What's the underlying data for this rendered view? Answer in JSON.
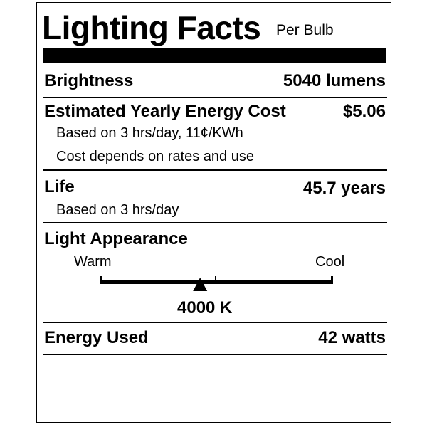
{
  "header": {
    "title": "Lighting Facts",
    "subtitle": "Per Bulb"
  },
  "brightness": {
    "label": "Brightness",
    "value": "5040 lumens"
  },
  "energy_cost": {
    "label": "Estimated Yearly Energy Cost",
    "value": "$5.06",
    "notes": [
      "Based on 3 hrs/day, 11¢/KWh",
      "Cost depends on rates and use"
    ]
  },
  "life": {
    "label": "Life",
    "value": "45.7 years",
    "note": "Based on 3 hrs/day"
  },
  "light_appearance": {
    "label": "Light Appearance",
    "warm_label": "Warm",
    "cool_label": "Cool",
    "value": "4000 K",
    "position_fraction": 0.43
  },
  "energy_used": {
    "label": "Energy Used",
    "value": "42 watts"
  }
}
